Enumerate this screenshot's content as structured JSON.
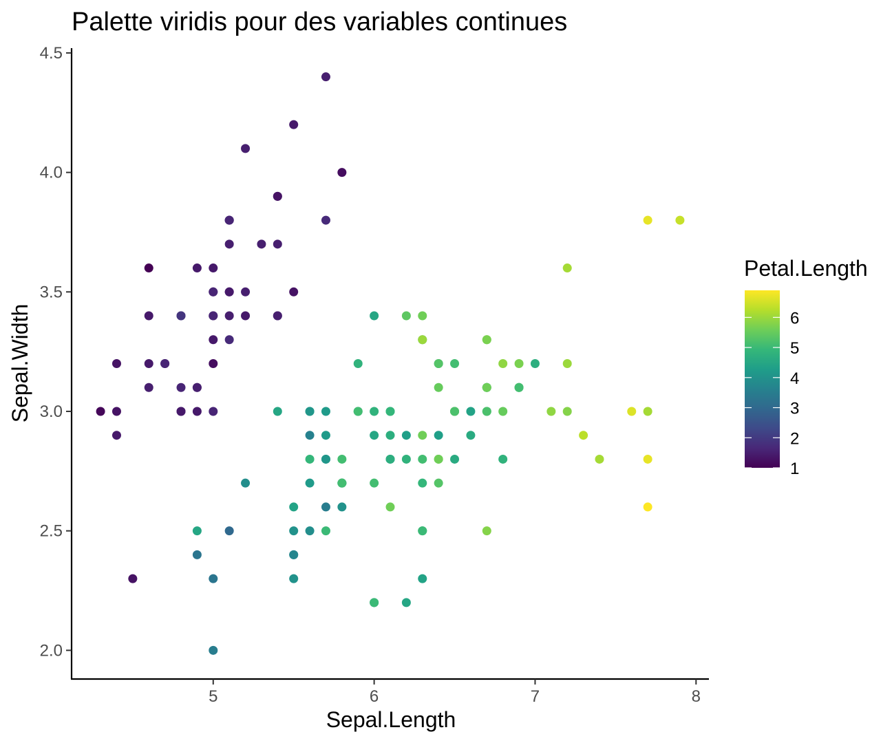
{
  "chart_data": {
    "type": "scatter",
    "title": "Palette viridis pour des variables continues",
    "xlabel": "Sepal.Length",
    "ylabel": "Sepal.Width",
    "xlim": [
      4.12,
      8.08
    ],
    "ylim": [
      1.88,
      4.52
    ],
    "x_ticks": [
      "5",
      "6",
      "7",
      "8"
    ],
    "y_ticks": [
      "2.0",
      "2.5",
      "3.0",
      "3.5",
      "4.0",
      "4.5"
    ],
    "grid": false,
    "legend": {
      "title": "Petal.Length",
      "placement": "right",
      "min": 1.0,
      "max": 6.9,
      "breaks": [
        "1",
        "2",
        "3",
        "4",
        "5",
        "6"
      ]
    },
    "colormap": [
      "#440154",
      "#482878",
      "#3e4a89",
      "#31688e",
      "#26828e",
      "#1f9e89",
      "#35b779",
      "#6ece58",
      "#b5de2b",
      "#fde725"
    ],
    "points": [
      {
        "x": 4.3,
        "y": 3.0,
        "c": 1.1
      },
      {
        "x": 4.4,
        "y": 2.9,
        "c": 1.4
      },
      {
        "x": 4.4,
        "y": 3.0,
        "c": 1.3
      },
      {
        "x": 4.4,
        "y": 3.2,
        "c": 1.3
      },
      {
        "x": 4.5,
        "y": 2.3,
        "c": 1.3
      },
      {
        "x": 4.6,
        "y": 3.1,
        "c": 1.5
      },
      {
        "x": 4.6,
        "y": 3.4,
        "c": 1.4
      },
      {
        "x": 4.6,
        "y": 3.6,
        "c": 1.0
      },
      {
        "x": 4.6,
        "y": 3.2,
        "c": 1.4
      },
      {
        "x": 4.7,
        "y": 3.2,
        "c": 1.3
      },
      {
        "x": 4.7,
        "y": 3.2,
        "c": 1.6
      },
      {
        "x": 4.8,
        "y": 3.4,
        "c": 1.6
      },
      {
        "x": 4.8,
        "y": 3.0,
        "c": 1.4
      },
      {
        "x": 4.8,
        "y": 3.4,
        "c": 1.9
      },
      {
        "x": 4.8,
        "y": 3.1,
        "c": 1.6
      },
      {
        "x": 4.8,
        "y": 3.0,
        "c": 1.4
      },
      {
        "x": 4.9,
        "y": 3.0,
        "c": 1.4
      },
      {
        "x": 4.9,
        "y": 3.1,
        "c": 1.5
      },
      {
        "x": 4.9,
        "y": 3.1,
        "c": 1.5
      },
      {
        "x": 4.9,
        "y": 3.6,
        "c": 1.4
      },
      {
        "x": 4.9,
        "y": 2.5,
        "c": 4.5
      },
      {
        "x": 4.9,
        "y": 2.4,
        "c": 3.3
      },
      {
        "x": 5.0,
        "y": 3.6,
        "c": 1.4
      },
      {
        "x": 5.0,
        "y": 3.4,
        "c": 1.5
      },
      {
        "x": 5.0,
        "y": 3.0,
        "c": 1.6
      },
      {
        "x": 5.0,
        "y": 3.4,
        "c": 1.6
      },
      {
        "x": 5.0,
        "y": 3.2,
        "c": 1.2
      },
      {
        "x": 5.0,
        "y": 3.5,
        "c": 1.3
      },
      {
        "x": 5.0,
        "y": 3.5,
        "c": 1.6
      },
      {
        "x": 5.0,
        "y": 3.3,
        "c": 1.4
      },
      {
        "x": 5.0,
        "y": 2.0,
        "c": 3.5
      },
      {
        "x": 5.0,
        "y": 2.3,
        "c": 3.3
      },
      {
        "x": 5.1,
        "y": 3.5,
        "c": 1.4
      },
      {
        "x": 5.1,
        "y": 3.5,
        "c": 1.4
      },
      {
        "x": 5.1,
        "y": 3.8,
        "c": 1.5
      },
      {
        "x": 5.1,
        "y": 3.8,
        "c": 1.9
      },
      {
        "x": 5.1,
        "y": 3.7,
        "c": 1.5
      },
      {
        "x": 5.1,
        "y": 3.3,
        "c": 1.7
      },
      {
        "x": 5.1,
        "y": 3.4,
        "c": 1.5
      },
      {
        "x": 5.1,
        "y": 3.8,
        "c": 1.6
      },
      {
        "x": 5.1,
        "y": 2.5,
        "c": 3.0
      },
      {
        "x": 5.2,
        "y": 3.5,
        "c": 1.5
      },
      {
        "x": 5.2,
        "y": 3.4,
        "c": 1.4
      },
      {
        "x": 5.2,
        "y": 4.1,
        "c": 1.5
      },
      {
        "x": 5.2,
        "y": 2.7,
        "c": 3.9
      },
      {
        "x": 5.3,
        "y": 3.7,
        "c": 1.5
      },
      {
        "x": 5.4,
        "y": 3.9,
        "c": 1.7
      },
      {
        "x": 5.4,
        "y": 3.7,
        "c": 1.5
      },
      {
        "x": 5.4,
        "y": 3.9,
        "c": 1.3
      },
      {
        "x": 5.4,
        "y": 3.4,
        "c": 1.7
      },
      {
        "x": 5.4,
        "y": 3.4,
        "c": 1.5
      },
      {
        "x": 5.4,
        "y": 3.0,
        "c": 4.5
      },
      {
        "x": 5.5,
        "y": 4.2,
        "c": 1.4
      },
      {
        "x": 5.5,
        "y": 3.5,
        "c": 1.3
      },
      {
        "x": 5.5,
        "y": 2.3,
        "c": 4.0
      },
      {
        "x": 5.5,
        "y": 2.4,
        "c": 3.8
      },
      {
        "x": 5.5,
        "y": 2.4,
        "c": 3.7
      },
      {
        "x": 5.5,
        "y": 2.5,
        "c": 4.0
      },
      {
        "x": 5.5,
        "y": 2.6,
        "c": 4.4
      },
      {
        "x": 5.6,
        "y": 2.9,
        "c": 3.6
      },
      {
        "x": 5.6,
        "y": 3.0,
        "c": 4.5
      },
      {
        "x": 5.6,
        "y": 2.5,
        "c": 3.9
      },
      {
        "x": 5.6,
        "y": 3.0,
        "c": 4.1
      },
      {
        "x": 5.6,
        "y": 2.7,
        "c": 4.2
      },
      {
        "x": 5.6,
        "y": 2.8,
        "c": 4.9
      },
      {
        "x": 5.7,
        "y": 4.4,
        "c": 1.5
      },
      {
        "x": 5.7,
        "y": 3.8,
        "c": 1.7
      },
      {
        "x": 5.7,
        "y": 2.8,
        "c": 4.5
      },
      {
        "x": 5.7,
        "y": 2.6,
        "c": 3.5
      },
      {
        "x": 5.7,
        "y": 3.0,
        "c": 4.2
      },
      {
        "x": 5.7,
        "y": 2.9,
        "c": 4.2
      },
      {
        "x": 5.7,
        "y": 2.8,
        "c": 4.1
      },
      {
        "x": 5.7,
        "y": 2.5,
        "c": 5.0
      },
      {
        "x": 5.8,
        "y": 4.0,
        "c": 1.2
      },
      {
        "x": 5.8,
        "y": 2.7,
        "c": 4.1
      },
      {
        "x": 5.8,
        "y": 2.7,
        "c": 3.9
      },
      {
        "x": 5.8,
        "y": 2.6,
        "c": 4.0
      },
      {
        "x": 5.8,
        "y": 2.7,
        "c": 5.1
      },
      {
        "x": 5.8,
        "y": 2.8,
        "c": 5.1
      },
      {
        "x": 5.8,
        "y": 2.7,
        "c": 5.1
      },
      {
        "x": 5.9,
        "y": 3.2,
        "c": 4.8
      },
      {
        "x": 5.9,
        "y": 3.0,
        "c": 4.2
      },
      {
        "x": 5.9,
        "y": 3.0,
        "c": 5.1
      },
      {
        "x": 6.0,
        "y": 2.2,
        "c": 4.0
      },
      {
        "x": 6.0,
        "y": 2.9,
        "c": 4.5
      },
      {
        "x": 6.0,
        "y": 3.4,
        "c": 4.5
      },
      {
        "x": 6.0,
        "y": 2.7,
        "c": 5.1
      },
      {
        "x": 6.0,
        "y": 2.2,
        "c": 5.0
      },
      {
        "x": 6.0,
        "y": 3.0,
        "c": 4.8
      },
      {
        "x": 6.1,
        "y": 2.9,
        "c": 4.7
      },
      {
        "x": 6.1,
        "y": 2.8,
        "c": 4.0
      },
      {
        "x": 6.1,
        "y": 2.8,
        "c": 4.7
      },
      {
        "x": 6.1,
        "y": 3.0,
        "c": 4.6
      },
      {
        "x": 6.1,
        "y": 3.0,
        "c": 4.9
      },
      {
        "x": 6.1,
        "y": 2.6,
        "c": 5.6
      },
      {
        "x": 6.2,
        "y": 2.2,
        "c": 4.5
      },
      {
        "x": 6.2,
        "y": 2.9,
        "c": 4.3
      },
      {
        "x": 6.2,
        "y": 2.8,
        "c": 4.8
      },
      {
        "x": 6.2,
        "y": 3.4,
        "c": 5.4
      },
      {
        "x": 6.3,
        "y": 3.3,
        "c": 4.7
      },
      {
        "x": 6.3,
        "y": 2.5,
        "c": 4.9
      },
      {
        "x": 6.3,
        "y": 2.3,
        "c": 4.4
      },
      {
        "x": 6.3,
        "y": 3.3,
        "c": 6.0
      },
      {
        "x": 6.3,
        "y": 2.9,
        "c": 5.6
      },
      {
        "x": 6.3,
        "y": 2.5,
        "c": 5.0
      },
      {
        "x": 6.3,
        "y": 2.8,
        "c": 5.1
      },
      {
        "x": 6.3,
        "y": 3.4,
        "c": 5.6
      },
      {
        "x": 6.3,
        "y": 2.7,
        "c": 4.9
      },
      {
        "x": 6.4,
        "y": 3.2,
        "c": 4.5
      },
      {
        "x": 6.4,
        "y": 2.9,
        "c": 4.3
      },
      {
        "x": 6.4,
        "y": 3.2,
        "c": 5.3
      },
      {
        "x": 6.4,
        "y": 2.7,
        "c": 5.3
      },
      {
        "x": 6.4,
        "y": 2.8,
        "c": 5.6
      },
      {
        "x": 6.4,
        "y": 3.1,
        "c": 5.5
      },
      {
        "x": 6.4,
        "y": 2.8,
        "c": 5.6
      },
      {
        "x": 6.5,
        "y": 2.8,
        "c": 4.6
      },
      {
        "x": 6.5,
        "y": 3.0,
        "c": 5.8
      },
      {
        "x": 6.5,
        "y": 3.2,
        "c": 5.1
      },
      {
        "x": 6.5,
        "y": 3.0,
        "c": 5.5
      },
      {
        "x": 6.5,
        "y": 3.0,
        "c": 5.2
      },
      {
        "x": 6.6,
        "y": 2.9,
        "c": 4.6
      },
      {
        "x": 6.6,
        "y": 3.0,
        "c": 4.4
      },
      {
        "x": 6.7,
        "y": 3.1,
        "c": 4.4
      },
      {
        "x": 6.7,
        "y": 3.0,
        "c": 5.0
      },
      {
        "x": 6.7,
        "y": 3.1,
        "c": 4.7
      },
      {
        "x": 6.7,
        "y": 2.5,
        "c": 5.8
      },
      {
        "x": 6.7,
        "y": 3.3,
        "c": 5.7
      },
      {
        "x": 6.7,
        "y": 3.1,
        "c": 5.6
      },
      {
        "x": 6.7,
        "y": 3.3,
        "c": 5.7
      },
      {
        "x": 6.7,
        "y": 3.0,
        "c": 5.2
      },
      {
        "x": 6.8,
        "y": 2.8,
        "c": 4.8
      },
      {
        "x": 6.8,
        "y": 3.0,
        "c": 5.5
      },
      {
        "x": 6.8,
        "y": 3.2,
        "c": 5.9
      },
      {
        "x": 6.9,
        "y": 3.1,
        "c": 4.9
      },
      {
        "x": 6.9,
        "y": 3.2,
        "c": 5.7
      },
      {
        "x": 6.9,
        "y": 3.1,
        "c": 5.4
      },
      {
        "x": 6.9,
        "y": 3.1,
        "c": 5.1
      },
      {
        "x": 7.0,
        "y": 3.2,
        "c": 4.7
      },
      {
        "x": 7.1,
        "y": 3.0,
        "c": 5.9
      },
      {
        "x": 7.2,
        "y": 3.6,
        "c": 6.1
      },
      {
        "x": 7.2,
        "y": 3.2,
        "c": 6.0
      },
      {
        "x": 7.2,
        "y": 3.0,
        "c": 5.8
      },
      {
        "x": 7.3,
        "y": 2.9,
        "c": 6.3
      },
      {
        "x": 7.4,
        "y": 2.8,
        "c": 6.1
      },
      {
        "x": 7.6,
        "y": 3.0,
        "c": 6.6
      },
      {
        "x": 7.7,
        "y": 3.8,
        "c": 6.7
      },
      {
        "x": 7.7,
        "y": 2.6,
        "c": 6.9
      },
      {
        "x": 7.7,
        "y": 2.8,
        "c": 6.7
      },
      {
        "x": 7.7,
        "y": 3.0,
        "c": 6.1
      },
      {
        "x": 7.9,
        "y": 3.8,
        "c": 6.4
      }
    ]
  }
}
